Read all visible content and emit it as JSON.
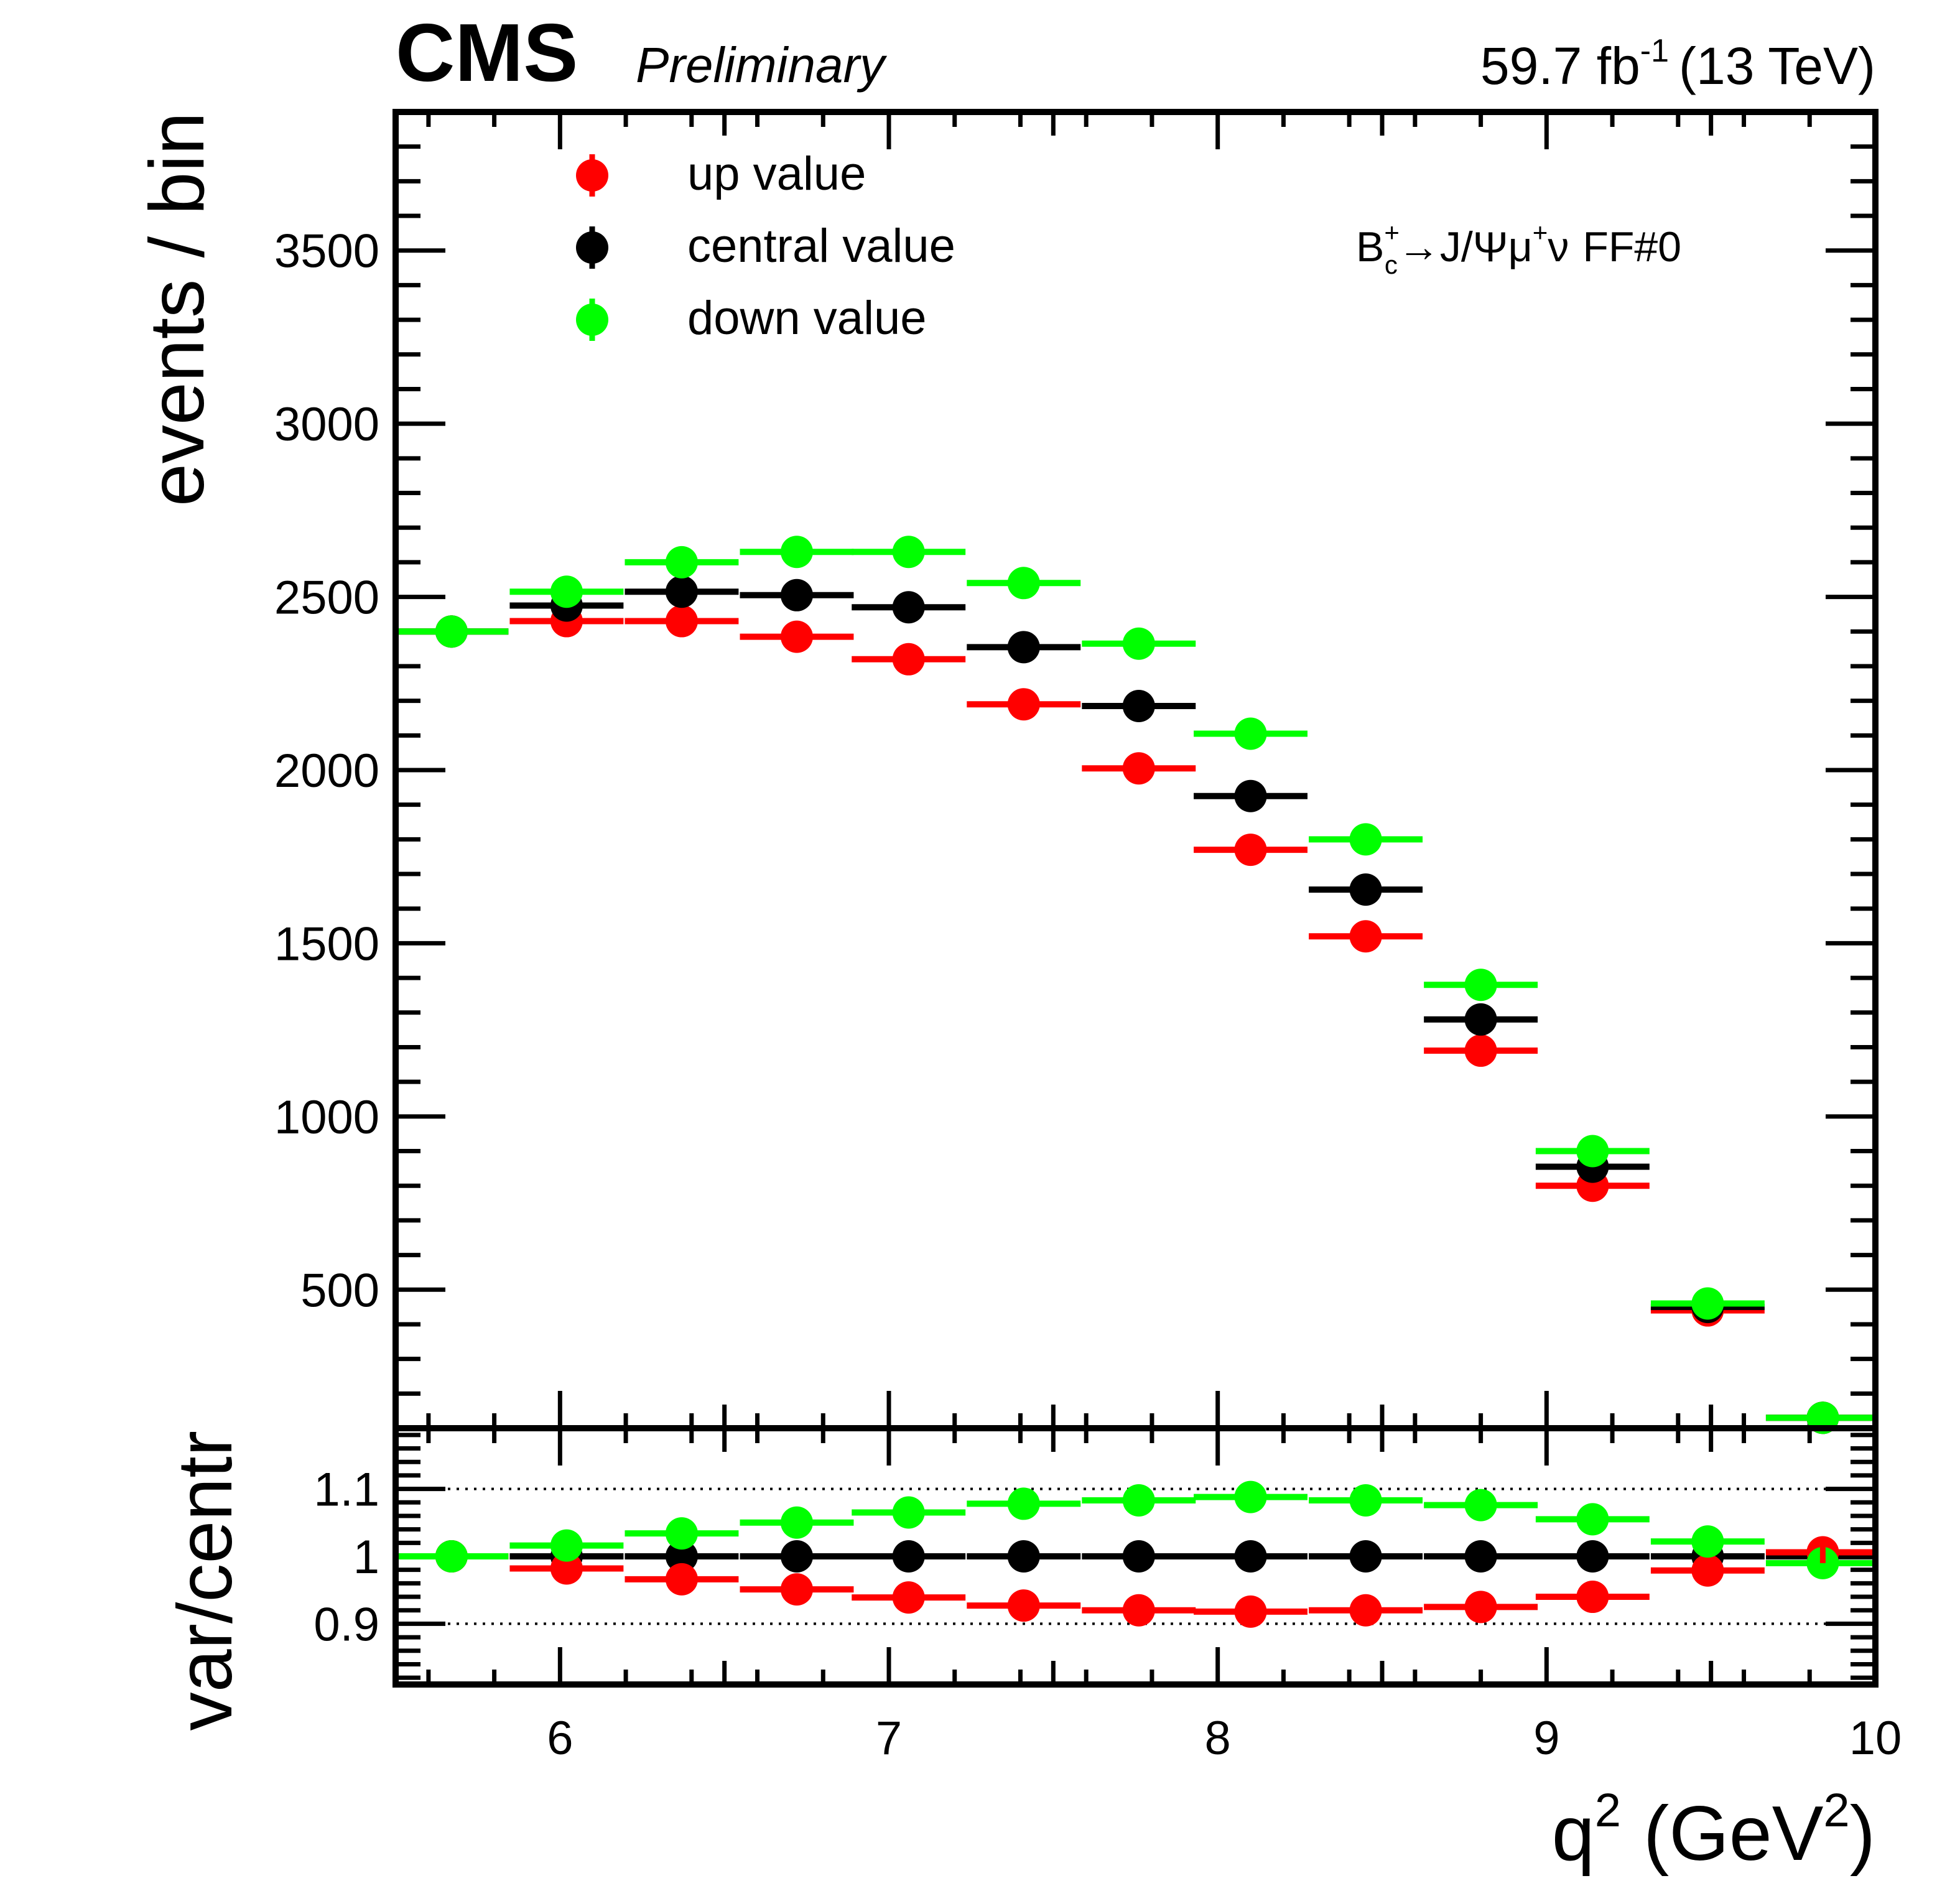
{
  "header": {
    "experiment": "CMS",
    "status": "Preliminary",
    "lumi_value": "59.7 fb",
    "lumi_exp": "-1",
    "energy": "(13 TeV)"
  },
  "annotation": {
    "particle": "B",
    "sub": "c",
    "sup": "+",
    "decay": "→J/Ψμ",
    "mu_sup": "+",
    "nu": "ν",
    "tag": "FF#0"
  },
  "colors": {
    "up": "#ff0000",
    "central": "#000000",
    "down": "#00ff00"
  },
  "chart_data": [
    {
      "type": "scatter",
      "panel": "main",
      "ylabel": "events / bin",
      "xlim": [
        5.5,
        10
      ],
      "ylim": [
        100,
        3900
      ],
      "y_ticks": [
        500,
        1000,
        1500,
        2000,
        2500,
        3000,
        3500
      ],
      "grid": false,
      "legend_placement": "top-left",
      "x": [
        5.67,
        6.02,
        6.37,
        6.72,
        7.06,
        7.41,
        7.76,
        8.1,
        8.45,
        8.8,
        9.14,
        9.49,
        9.84
      ],
      "bin_half_width": 0.173,
      "series": [
        {
          "key": "up",
          "name": "up value",
          "color": "#ff0000",
          "values": [
            2400,
            2430,
            2430,
            2385,
            2320,
            2190,
            2005,
            1770,
            1520,
            1190,
            800,
            440,
            130
          ]
        },
        {
          "key": "central",
          "name": "central value",
          "color": "#000000",
          "values": [
            2400,
            2475,
            2515,
            2505,
            2470,
            2355,
            2185,
            1925,
            1655,
            1280,
            855,
            450,
            130
          ]
        },
        {
          "key": "down",
          "name": "down value",
          "color": "#00ff00",
          "values": [
            2400,
            2515,
            2600,
            2630,
            2630,
            2540,
            2365,
            2105,
            1800,
            1380,
            900,
            460,
            130
          ]
        }
      ]
    },
    {
      "type": "scatter",
      "panel": "ratio",
      "xlabel": "q",
      "xlabel_sup": "2",
      "xlabel_unit_open": "(GeV",
      "xlabel_unit_sup": "2",
      "xlabel_unit_close": ")",
      "ylabel": "var/centr",
      "xlim": [
        5.5,
        10
      ],
      "ylim": [
        0.81,
        1.19
      ],
      "y_ticks": [
        0.9,
        1,
        1.1
      ],
      "y_tick_labels": [
        "0.9",
        "1",
        "1.1"
      ],
      "x_ticks": [
        6,
        7,
        8,
        9,
        10
      ],
      "x_tick_labels": [
        "6",
        "7",
        "8",
        "9",
        "10"
      ],
      "reference_lines": [
        0.9,
        1.1
      ],
      "x": [
        5.67,
        6.02,
        6.37,
        6.72,
        7.06,
        7.41,
        7.76,
        8.1,
        8.45,
        8.8,
        9.14,
        9.49,
        9.84
      ],
      "bin_half_width": 0.173,
      "series": [
        {
          "key": "up",
          "color": "#ff0000",
          "values": [
            1.0,
            0.982,
            0.966,
            0.951,
            0.939,
            0.927,
            0.92,
            0.918,
            0.92,
            0.925,
            0.94,
            0.979,
            1.006
          ]
        },
        {
          "key": "central",
          "color": "#000000",
          "values": [
            1.0,
            1.0,
            1.0,
            1.0,
            1.0,
            1.0,
            1.0,
            1.0,
            1.0,
            1.0,
            1.0,
            1.0,
            1.0
          ]
        },
        {
          "key": "down",
          "color": "#00ff00",
          "values": [
            1.0,
            1.016,
            1.034,
            1.05,
            1.065,
            1.078,
            1.083,
            1.088,
            1.083,
            1.076,
            1.055,
            1.022,
            0.99
          ]
        }
      ]
    }
  ]
}
